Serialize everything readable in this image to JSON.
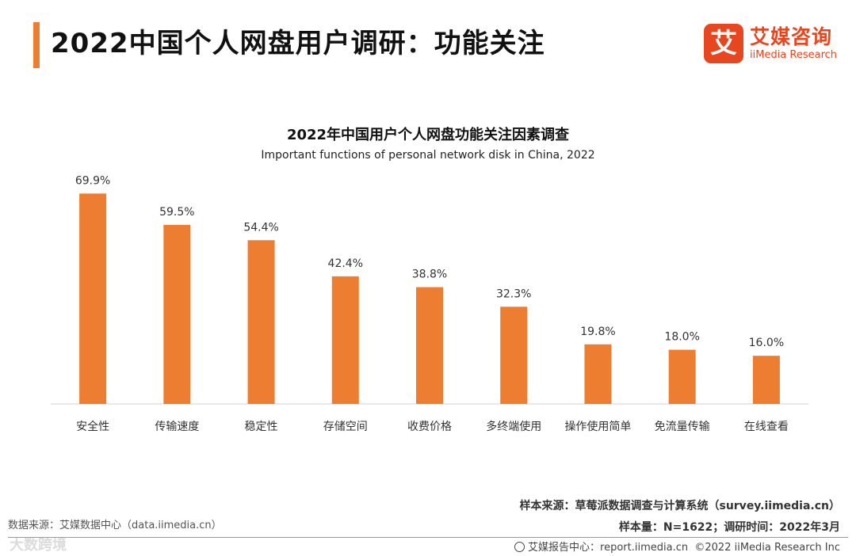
{
  "header": {
    "title": "2022中国个人网盘用户调研：功能关注",
    "logo_mark": "艾",
    "logo_cn": "艾媒咨询",
    "logo_en": "iiMedia Research"
  },
  "colors": {
    "accent": "#ED7D31",
    "brand": "#E8461E",
    "bar": "#ED7D31"
  },
  "chart_data": {
    "type": "bar",
    "title": "2022年中国用户个人网盘功能关注因素调查",
    "subtitle": "Important functions of personal network disk in China, 2022",
    "categories": [
      "安全性",
      "传输速度",
      "稳定性",
      "存储空间",
      "收费价格",
      "多终端使用",
      "操作使用简单",
      "免流量传输",
      "在线查看"
    ],
    "values": [
      69.9,
      59.5,
      54.4,
      42.4,
      38.8,
      32.3,
      19.8,
      18.0,
      16.0
    ],
    "value_labels": [
      "69.9%",
      "59.5%",
      "54.4%",
      "42.4%",
      "38.8%",
      "32.3%",
      "19.8%",
      "18.0%",
      "16.0%"
    ],
    "unit": "%",
    "xlabel": "",
    "ylabel": "",
    "ylim": [
      0,
      70
    ],
    "grid": false,
    "legend": "none"
  },
  "footer": {
    "data_source": "数据来源：艾媒数据中心（data.iimedia.cn）",
    "sample_source": "样本来源：草莓派数据调查与计算系统（survey.iimedia.cn）",
    "sample_info": "样本量：N=1622；调研时间：2022年3月",
    "report_center": "艾媒报告中心：report.iimedia.cn",
    "copyright": "©2022 iiMedia Research Inc",
    "watermark": "大数跨境"
  }
}
